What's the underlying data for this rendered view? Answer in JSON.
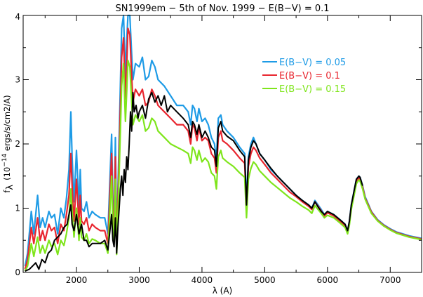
{
  "chart_data": {
    "type": "line",
    "title": "SN1999em − 5th of Nov. 1999 − E(B−V) = 0.1",
    "xlabel": "λ (A)",
    "ylabel": {
      "prefix": "f",
      "subscript": "λ",
      "mid": "(10",
      "exponent": "−14",
      "suffix": " ergs/s/cm2/A)"
    },
    "xlim": [
      1150,
      7500
    ],
    "ylim": [
      0,
      4
    ],
    "xticks": [
      {
        "value": 2000,
        "label": "2000"
      },
      {
        "value": 3000,
        "label": "3000"
      },
      {
        "value": 4000,
        "label": "4000"
      },
      {
        "value": 5000,
        "label": "5000"
      },
      {
        "value": 6000,
        "label": "6000"
      },
      {
        "value": 7000,
        "label": "7000"
      }
    ],
    "yticks": [
      {
        "value": 0,
        "label": "0"
      },
      {
        "value": 1,
        "label": "1"
      },
      {
        "value": 2,
        "label": "2"
      },
      {
        "value": 3,
        "label": "3"
      },
      {
        "value": 4,
        "label": "4"
      }
    ],
    "grid": false,
    "legend_position": "top-right",
    "series": [
      {
        "name": "E(B−V) = 0.05",
        "color": "#1e9be6",
        "x": [
          1180,
          1220,
          1280,
          1320,
          1380,
          1420,
          1460,
          1500,
          1560,
          1600,
          1650,
          1700,
          1750,
          1800,
          1840,
          1880,
          1910,
          1930,
          1960,
          2000,
          2040,
          2060,
          2080,
          2120,
          2160,
          2200,
          2250,
          2300,
          2380,
          2450,
          2500,
          2560,
          2580,
          2600,
          2620,
          2640,
          2660,
          2680,
          2720,
          2750,
          2780,
          2800,
          2820,
          2850,
          2880,
          2900,
          2940,
          3000,
          3050,
          3100,
          3150,
          3200,
          3250,
          3300,
          3400,
          3500,
          3600,
          3700,
          3780,
          3820,
          3850,
          3880,
          3920,
          3950,
          4000,
          4050,
          4100,
          4150,
          4200,
          4230,
          4260,
          4300,
          4330,
          4400,
          4500,
          4600,
          4680,
          4710,
          4740,
          4780,
          4820,
          4860,
          4920,
          5000,
          5100,
          5200,
          5300,
          5400,
          5500,
          5600,
          5700,
          5750,
          5800,
          5850,
          5900,
          5950,
          6000,
          6100,
          6200,
          6280,
          6320,
          6350,
          6380,
          6420,
          6460,
          6500,
          6520,
          6560,
          6600,
          6700,
          6800,
          6900,
          7000,
          7100,
          7200,
          7300,
          7400,
          7500
        ],
        "y": [
          0.1,
          0.3,
          0.95,
          0.6,
          1.2,
          0.7,
          0.85,
          0.7,
          0.95,
          0.85,
          0.9,
          0.6,
          1.0,
          0.85,
          1.15,
          1.6,
          2.5,
          1.8,
          1.1,
          1.9,
          1.0,
          1.6,
          1.0,
          0.95,
          1.1,
          0.85,
          0.95,
          0.9,
          0.85,
          0.85,
          0.6,
          2.15,
          1.1,
          0.8,
          2.1,
          0.45,
          1.3,
          2.1,
          3.8,
          4.05,
          3.05,
          3.6,
          4.2,
          4.05,
          3.4,
          3.0,
          3.25,
          3.2,
          3.35,
          3.0,
          3.05,
          3.3,
          3.2,
          3.0,
          2.9,
          2.75,
          2.6,
          2.6,
          2.5,
          2.3,
          2.6,
          2.55,
          2.35,
          2.55,
          2.35,
          2.4,
          2.3,
          2.1,
          2.0,
          1.75,
          2.4,
          2.45,
          2.3,
          2.2,
          2.1,
          1.95,
          1.85,
          1.1,
          1.8,
          2.0,
          2.1,
          2.0,
          1.85,
          1.75,
          1.6,
          1.5,
          1.4,
          1.3,
          1.2,
          1.12,
          1.05,
          1.0,
          1.12,
          1.05,
          0.98,
          0.9,
          0.95,
          0.9,
          0.82,
          0.75,
          0.65,
          0.8,
          1.05,
          1.25,
          1.45,
          1.5,
          1.48,
          1.35,
          1.18,
          0.95,
          0.82,
          0.74,
          0.68,
          0.63,
          0.6,
          0.57,
          0.55,
          0.53
        ]
      },
      {
        "name": "E(B−V) = 0.1",
        "color": "#e8262f",
        "x": [
          1180,
          1220,
          1280,
          1320,
          1380,
          1420,
          1460,
          1500,
          1560,
          1600,
          1650,
          1700,
          1750,
          1800,
          1840,
          1880,
          1910,
          1930,
          1960,
          2000,
          2040,
          2060,
          2080,
          2120,
          2160,
          2200,
          2250,
          2300,
          2380,
          2450,
          2500,
          2560,
          2580,
          2600,
          2620,
          2640,
          2660,
          2680,
          2720,
          2750,
          2780,
          2800,
          2820,
          2850,
          2880,
          2900,
          2940,
          3000,
          3050,
          3100,
          3150,
          3200,
          3250,
          3300,
          3400,
          3500,
          3600,
          3700,
          3780,
          3820,
          3850,
          3880,
          3920,
          3950,
          4000,
          4050,
          4100,
          4150,
          4200,
          4230,
          4260,
          4300,
          4330,
          4400,
          4500,
          4600,
          4680,
          4710,
          4740,
          4780,
          4820,
          4860,
          4920,
          5000,
          5100,
          5200,
          5300,
          5400,
          5500,
          5600,
          5700,
          5750,
          5800,
          5850,
          5900,
          5950,
          6000,
          6100,
          6200,
          6280,
          6320,
          6350,
          6380,
          6420,
          6460,
          6500,
          6520,
          6560,
          6600,
          6700,
          6800,
          6900,
          7000,
          7100,
          7200,
          7300,
          7400,
          7500
        ],
        "y": [
          0.05,
          0.2,
          0.7,
          0.45,
          0.85,
          0.5,
          0.65,
          0.5,
          0.75,
          0.65,
          0.7,
          0.45,
          0.75,
          0.65,
          0.9,
          1.2,
          1.85,
          1.35,
          0.8,
          1.45,
          0.75,
          1.2,
          0.8,
          0.75,
          0.85,
          0.65,
          0.75,
          0.7,
          0.65,
          0.65,
          0.45,
          1.85,
          0.9,
          0.65,
          1.8,
          0.35,
          1.1,
          1.85,
          3.35,
          3.65,
          2.7,
          3.2,
          3.8,
          3.7,
          3.05,
          2.65,
          2.85,
          2.75,
          2.85,
          2.6,
          2.65,
          2.85,
          2.75,
          2.6,
          2.5,
          2.4,
          2.3,
          2.3,
          2.2,
          2.0,
          2.3,
          2.25,
          2.05,
          2.25,
          2.05,
          2.1,
          2.05,
          1.85,
          1.78,
          1.55,
          2.1,
          2.2,
          2.05,
          2.0,
          1.9,
          1.78,
          1.7,
          1.0,
          1.65,
          1.85,
          1.95,
          1.9,
          1.78,
          1.68,
          1.55,
          1.45,
          1.35,
          1.25,
          1.18,
          1.1,
          1.03,
          0.98,
          1.1,
          1.03,
          0.96,
          0.88,
          0.93,
          0.88,
          0.8,
          0.73,
          0.64,
          0.78,
          1.02,
          1.22,
          1.42,
          1.47,
          1.45,
          1.33,
          1.16,
          0.94,
          0.81,
          0.73,
          0.67,
          0.62,
          0.59,
          0.56,
          0.54,
          0.52
        ]
      },
      {
        "name": "E(B−V) = 0.15",
        "color": "#7fe51c",
        "x": [
          1180,
          1220,
          1280,
          1320,
          1380,
          1420,
          1460,
          1500,
          1560,
          1600,
          1650,
          1700,
          1750,
          1800,
          1840,
          1880,
          1910,
          1930,
          1960,
          2000,
          2040,
          2060,
          2080,
          2120,
          2160,
          2200,
          2250,
          2300,
          2380,
          2450,
          2500,
          2560,
          2580,
          2600,
          2620,
          2640,
          2660,
          2680,
          2720,
          2750,
          2780,
          2800,
          2820,
          2850,
          2880,
          2900,
          2940,
          3000,
          3050,
          3100,
          3150,
          3200,
          3250,
          3300,
          3400,
          3500,
          3600,
          3700,
          3780,
          3820,
          3850,
          3880,
          3920,
          3950,
          4000,
          4050,
          4100,
          4150,
          4200,
          4230,
          4260,
          4300,
          4330,
          4400,
          4500,
          4600,
          4680,
          4710,
          4740,
          4780,
          4820,
          4860,
          4920,
          5000,
          5100,
          5200,
          5300,
          5400,
          5500,
          5600,
          5700,
          5750,
          5800,
          5850,
          5900,
          5950,
          6000,
          6100,
          6200,
          6280,
          6320,
          6350,
          6380,
          6420,
          6460,
          6500,
          6520,
          6560,
          6600,
          6700,
          6800,
          6900,
          7000,
          7100,
          7200,
          7300,
          7400,
          7500
        ],
        "y": [
          0.02,
          0.1,
          0.45,
          0.25,
          0.55,
          0.3,
          0.42,
          0.3,
          0.5,
          0.4,
          0.45,
          0.28,
          0.5,
          0.42,
          0.6,
          0.85,
          1.3,
          0.95,
          0.55,
          1.0,
          0.5,
          0.85,
          0.55,
          0.5,
          0.6,
          0.45,
          0.52,
          0.5,
          0.45,
          0.45,
          0.3,
          1.5,
          0.7,
          0.5,
          1.45,
          0.28,
          0.9,
          1.55,
          2.9,
          3.25,
          2.35,
          2.8,
          3.3,
          3.2,
          2.65,
          2.3,
          2.45,
          2.35,
          2.45,
          2.2,
          2.25,
          2.4,
          2.35,
          2.2,
          2.1,
          2.0,
          1.95,
          1.9,
          1.85,
          1.7,
          1.95,
          1.9,
          1.75,
          1.9,
          1.72,
          1.78,
          1.72,
          1.55,
          1.5,
          1.3,
          1.8,
          1.9,
          1.78,
          1.72,
          1.65,
          1.55,
          1.48,
          0.85,
          1.45,
          1.62,
          1.72,
          1.68,
          1.58,
          1.5,
          1.4,
          1.32,
          1.24,
          1.16,
          1.1,
          1.03,
          0.97,
          0.92,
          1.04,
          0.98,
          0.92,
          0.85,
          0.89,
          0.85,
          0.77,
          0.7,
          0.6,
          0.74,
          0.98,
          1.18,
          1.38,
          1.44,
          1.42,
          1.3,
          1.14,
          0.92,
          0.8,
          0.72,
          0.66,
          0.61,
          0.58,
          0.55,
          0.53,
          0.51
        ]
      },
      {
        "name": "",
        "color": "#000000",
        "x": [
          1180,
          1250,
          1300,
          1350,
          1400,
          1450,
          1500,
          1550,
          1600,
          1650,
          1700,
          1750,
          1800,
          1850,
          1880,
          1910,
          1930,
          1960,
          2000,
          2040,
          2080,
          2120,
          2160,
          2200,
          2250,
          2300,
          2380,
          2450,
          2500,
          2560,
          2580,
          2600,
          2620,
          2640,
          2660,
          2680,
          2700,
          2720,
          2740,
          2760,
          2780,
          2800,
          2820,
          2840,
          2860,
          2880,
          2900,
          2920,
          2950,
          2980,
          3000,
          3050,
          3100,
          3150,
          3200,
          3250,
          3300,
          3350,
          3400,
          3450,
          3500,
          3600,
          3700,
          3780,
          3820,
          3850,
          3880,
          3920,
          3950,
          4000,
          4050,
          4100,
          4150,
          4200,
          4230,
          4260,
          4300,
          4330,
          4400,
          4500,
          4600,
          4680,
          4710,
          4740,
          4780,
          4820,
          4860,
          4920,
          5000,
          5100,
          5200,
          5300,
          5400,
          5500,
          5600,
          5700,
          5750,
          5800,
          5850,
          5900,
          5950,
          6000,
          6100,
          6200,
          6280,
          6320,
          6350,
          6380,
          6420,
          6460,
          6500,
          6520,
          6560
        ],
        "y": [
          0.02,
          0.05,
          0.1,
          0.15,
          0.05,
          0.2,
          0.15,
          0.3,
          0.35,
          0.5,
          0.55,
          0.6,
          0.7,
          0.75,
          0.9,
          1.05,
          0.75,
          0.65,
          0.9,
          0.6,
          0.75,
          0.5,
          0.5,
          0.4,
          0.45,
          0.45,
          0.45,
          0.5,
          0.35,
          0.9,
          0.5,
          0.4,
          0.85,
          0.3,
          0.7,
          1.0,
          1.3,
          1.5,
          1.2,
          1.6,
          1.4,
          1.8,
          1.6,
          2.0,
          2.5,
          2.2,
          2.8,
          2.5,
          2.6,
          2.4,
          2.5,
          2.6,
          2.4,
          2.7,
          2.8,
          2.65,
          2.75,
          2.6,
          2.75,
          2.5,
          2.6,
          2.5,
          2.4,
          2.3,
          2.1,
          2.35,
          2.3,
          2.15,
          2.3,
          2.1,
          2.2,
          2.1,
          1.95,
          1.9,
          1.65,
          2.25,
          2.35,
          2.2,
          2.12,
          2.05,
          1.9,
          1.8,
          1.05,
          1.75,
          1.95,
          2.05,
          2.0,
          1.85,
          1.75,
          1.62,
          1.5,
          1.4,
          1.3,
          1.2,
          1.12,
          1.05,
          1.0,
          1.1,
          1.02,
          0.95,
          0.9,
          0.95,
          0.9,
          0.82,
          0.75,
          0.65,
          0.8,
          1.05,
          1.25,
          1.45,
          1.5,
          1.48,
          1.35
        ]
      }
    ]
  }
}
